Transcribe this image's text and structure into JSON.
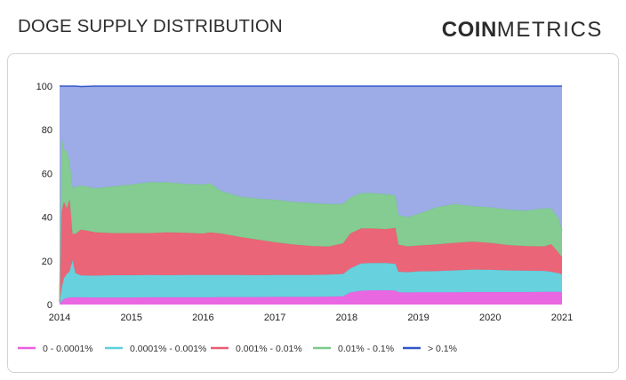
{
  "header": {
    "title": "DOGE SUPPLY DISTRIBUTION",
    "logo_bold": "COIN",
    "logo_light": "METRICS"
  },
  "chart_data": {
    "type": "area",
    "stacked": true,
    "title": "DOGE SUPPLY DISTRIBUTION",
    "xlabel": "",
    "ylabel": "",
    "ylim": [
      0,
      100
    ],
    "xlim": [
      2014.0,
      2021.0
    ],
    "y_ticks": [
      0,
      20,
      40,
      60,
      80,
      100
    ],
    "x_ticks": [
      2014,
      2015,
      2016,
      2017,
      2018,
      2019,
      2020,
      2021
    ],
    "grid": false,
    "legend_position": "bottom",
    "x": [
      2014.0,
      2014.03,
      2014.06,
      2014.1,
      2014.14,
      2014.18,
      2014.22,
      2014.3,
      2014.5,
      2014.75,
      2015.0,
      2015.25,
      2015.5,
      2015.75,
      2016.0,
      2016.1,
      2016.25,
      2016.5,
      2016.75,
      2017.0,
      2017.25,
      2017.5,
      2017.75,
      2017.95,
      2018.05,
      2018.2,
      2018.35,
      2018.55,
      2018.68,
      2018.72,
      2018.85,
      2019.0,
      2019.25,
      2019.5,
      2019.75,
      2020.0,
      2020.25,
      2020.5,
      2020.75,
      2020.85,
      2020.95,
      2021.0
    ],
    "series": [
      {
        "name": "0 - 0.0001%",
        "color": "#e95fe0",
        "values": [
          0.3,
          1.5,
          2.5,
          3.0,
          3.2,
          3.3,
          3.3,
          3.3,
          3.2,
          3.2,
          3.2,
          3.3,
          3.3,
          3.3,
          3.3,
          3.3,
          3.4,
          3.4,
          3.4,
          3.5,
          3.5,
          3.5,
          3.6,
          3.8,
          5.5,
          6.3,
          6.5,
          6.5,
          6.4,
          5.6,
          5.5,
          5.6,
          5.6,
          5.6,
          5.7,
          5.7,
          5.7,
          5.7,
          5.8,
          5.8,
          5.8,
          5.8
        ]
      },
      {
        "name": "0.0001% - 0.001%",
        "color": "#5fd0dc",
        "values": [
          0.5,
          6.0,
          9.5,
          11.0,
          12.0,
          17.0,
          11.0,
          10.0,
          10.0,
          10.2,
          10.2,
          10.2,
          10.1,
          10.2,
          10.2,
          10.2,
          10.1,
          10.1,
          10.0,
          10.0,
          10.0,
          10.0,
          10.1,
          10.2,
          11.0,
          12.5,
          12.5,
          12.5,
          12.2,
          9.4,
          9.3,
          9.6,
          9.7,
          10.0,
          10.3,
          10.2,
          9.9,
          9.8,
          9.6,
          9.2,
          8.5,
          8.0
        ]
      },
      {
        "name": "0.001% - 0.01%",
        "color": "#ea5d72",
        "values": [
          0.5,
          35.0,
          35.0,
          30.0,
          33.0,
          12.0,
          18.0,
          21.0,
          19.8,
          19.3,
          19.3,
          19.2,
          19.6,
          19.3,
          19.0,
          19.5,
          19.0,
          17.5,
          16.3,
          15.0,
          14.0,
          13.3,
          12.8,
          14.0,
          16.0,
          16.0,
          15.8,
          15.5,
          16.5,
          12.4,
          11.8,
          11.8,
          12.2,
          12.6,
          12.8,
          12.3,
          11.6,
          11.2,
          11.2,
          12.6,
          9.5,
          7.8
        ]
      },
      {
        "name": "0.01% - 0.1%",
        "color": "#7dc98b",
        "values": [
          1.0,
          34.5,
          24.0,
          26.0,
          17.0,
          21.0,
          21.7,
          20.2,
          20.2,
          21.4,
          22.3,
          23.3,
          23.0,
          22.4,
          22.5,
          22.5,
          19.5,
          18.5,
          18.8,
          19.5,
          19.5,
          19.7,
          19.5,
          18.0,
          16.5,
          16.2,
          16.2,
          16.0,
          14.9,
          13.6,
          13.4,
          14.5,
          17.0,
          17.8,
          16.3,
          16.3,
          16.3,
          16.3,
          17.4,
          16.4,
          15.7,
          12.4
        ]
      },
      {
        "name": "> 0.1%",
        "color": "#98a8e6",
        "line_color": "#3357c8",
        "values": [
          97.7,
          23.0,
          29.0,
          30.0,
          34.8,
          46.7,
          46.0,
          45.3,
          46.8,
          45.9,
          45.0,
          44.0,
          44.0,
          44.8,
          45.0,
          44.5,
          48.0,
          50.5,
          51.5,
          52.0,
          53.0,
          53.5,
          54.0,
          54.0,
          51.0,
          49.0,
          49.0,
          49.5,
          50.0,
          59.0,
          60.0,
          58.5,
          55.5,
          54.0,
          54.9,
          55.5,
          56.5,
          57.0,
          56.0,
          56.0,
          60.5,
          66.0
        ]
      }
    ]
  }
}
